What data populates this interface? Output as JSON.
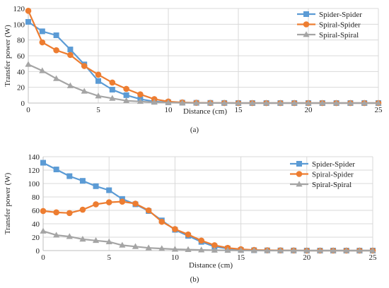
{
  "colors": {
    "spider_spider": "#5B9BD5",
    "spiral_spider": "#ED7D31",
    "spiral_spiral": "#A5A5A5"
  },
  "chart_data": [
    {
      "type": "line",
      "caption": "(a)",
      "xlabel": "Distance (cm)",
      "ylabel": "Transfer power (W)",
      "xlim": [
        0,
        25
      ],
      "ylim": [
        0,
        120
      ],
      "xticks": [
        0,
        5,
        10,
        15,
        20,
        25
      ],
      "yticks": [
        0,
        20,
        40,
        60,
        80,
        100,
        120
      ],
      "grid": true,
      "legend_position": "top-right",
      "x": [
        0,
        1,
        2,
        3,
        4,
        5,
        6,
        7,
        8,
        9,
        10,
        11,
        12,
        13,
        14,
        15,
        16,
        17,
        18,
        19,
        20,
        21,
        22,
        23,
        24,
        25
      ],
      "series": [
        {
          "name": "Spider-Spider",
          "marker": "square",
          "color_key": "spider_spider",
          "values": [
            103,
            91,
            86,
            68,
            49,
            28,
            17,
            10,
            5,
            2,
            1,
            0.5,
            0.3,
            0.2,
            0.1,
            0,
            0,
            0,
            0,
            0,
            0,
            0,
            0,
            0,
            0,
            0
          ]
        },
        {
          "name": "Spiral-Spider",
          "marker": "circle",
          "color_key": "spiral_spider",
          "values": [
            117,
            77,
            67,
            61,
            47,
            36,
            26,
            18,
            11,
            5,
            2,
            0.8,
            0.4,
            0.2,
            0.1,
            0,
            0,
            0,
            0,
            0,
            0,
            0,
            0,
            0,
            0,
            0
          ]
        },
        {
          "name": "Spiral-Spiral",
          "marker": "triangle",
          "color_key": "spiral_spiral",
          "values": [
            49,
            41,
            31,
            22,
            15,
            9,
            6,
            3,
            2,
            1,
            0.5,
            0.3,
            0.2,
            0.1,
            0,
            0,
            0,
            0,
            0,
            0,
            0,
            0,
            0,
            0,
            0,
            0
          ]
        }
      ]
    },
    {
      "type": "line",
      "caption": "(b)",
      "xlabel": "Distance (cm)",
      "ylabel": "Transfer power (W)",
      "xlim": [
        0,
        25
      ],
      "ylim": [
        0,
        140
      ],
      "xticks": [
        0,
        5,
        10,
        15,
        20,
        25
      ],
      "yticks": [
        0,
        20,
        40,
        60,
        80,
        100,
        120,
        140
      ],
      "grid": true,
      "legend_position": "top-right",
      "x": [
        0,
        1,
        2,
        3,
        4,
        5,
        6,
        7,
        8,
        9,
        10,
        11,
        12,
        13,
        14,
        15,
        16,
        17,
        18,
        19,
        20,
        21,
        22,
        23,
        24,
        25
      ],
      "series": [
        {
          "name": "Spider-Spider",
          "marker": "square",
          "color_key": "spider_spider",
          "values": [
            131,
            121,
            111,
            104,
            96,
            90,
            77,
            69,
            59,
            45,
            31,
            22,
            13,
            6,
            3,
            1,
            0.5,
            0.3,
            0.2,
            0.1,
            0,
            0,
            0,
            0,
            0,
            0
          ]
        },
        {
          "name": "Spiral-Spider",
          "marker": "circle",
          "color_key": "spiral_spider",
          "values": [
            59,
            57,
            56,
            61,
            69,
            72,
            73,
            70,
            60,
            43,
            32,
            24,
            15,
            8,
            4,
            2,
            1,
            0.5,
            0.3,
            0.2,
            0,
            0,
            0,
            0,
            0,
            0
          ]
        },
        {
          "name": "Spiral-Spiral",
          "marker": "triangle",
          "color_key": "spiral_spiral",
          "values": [
            29,
            23,
            21,
            17,
            15,
            13,
            8,
            6,
            4,
            3,
            2,
            1.5,
            1,
            0.5,
            0.3,
            0.2,
            0.1,
            0,
            0,
            0,
            0,
            0,
            0,
            0,
            0,
            0
          ]
        }
      ]
    }
  ]
}
